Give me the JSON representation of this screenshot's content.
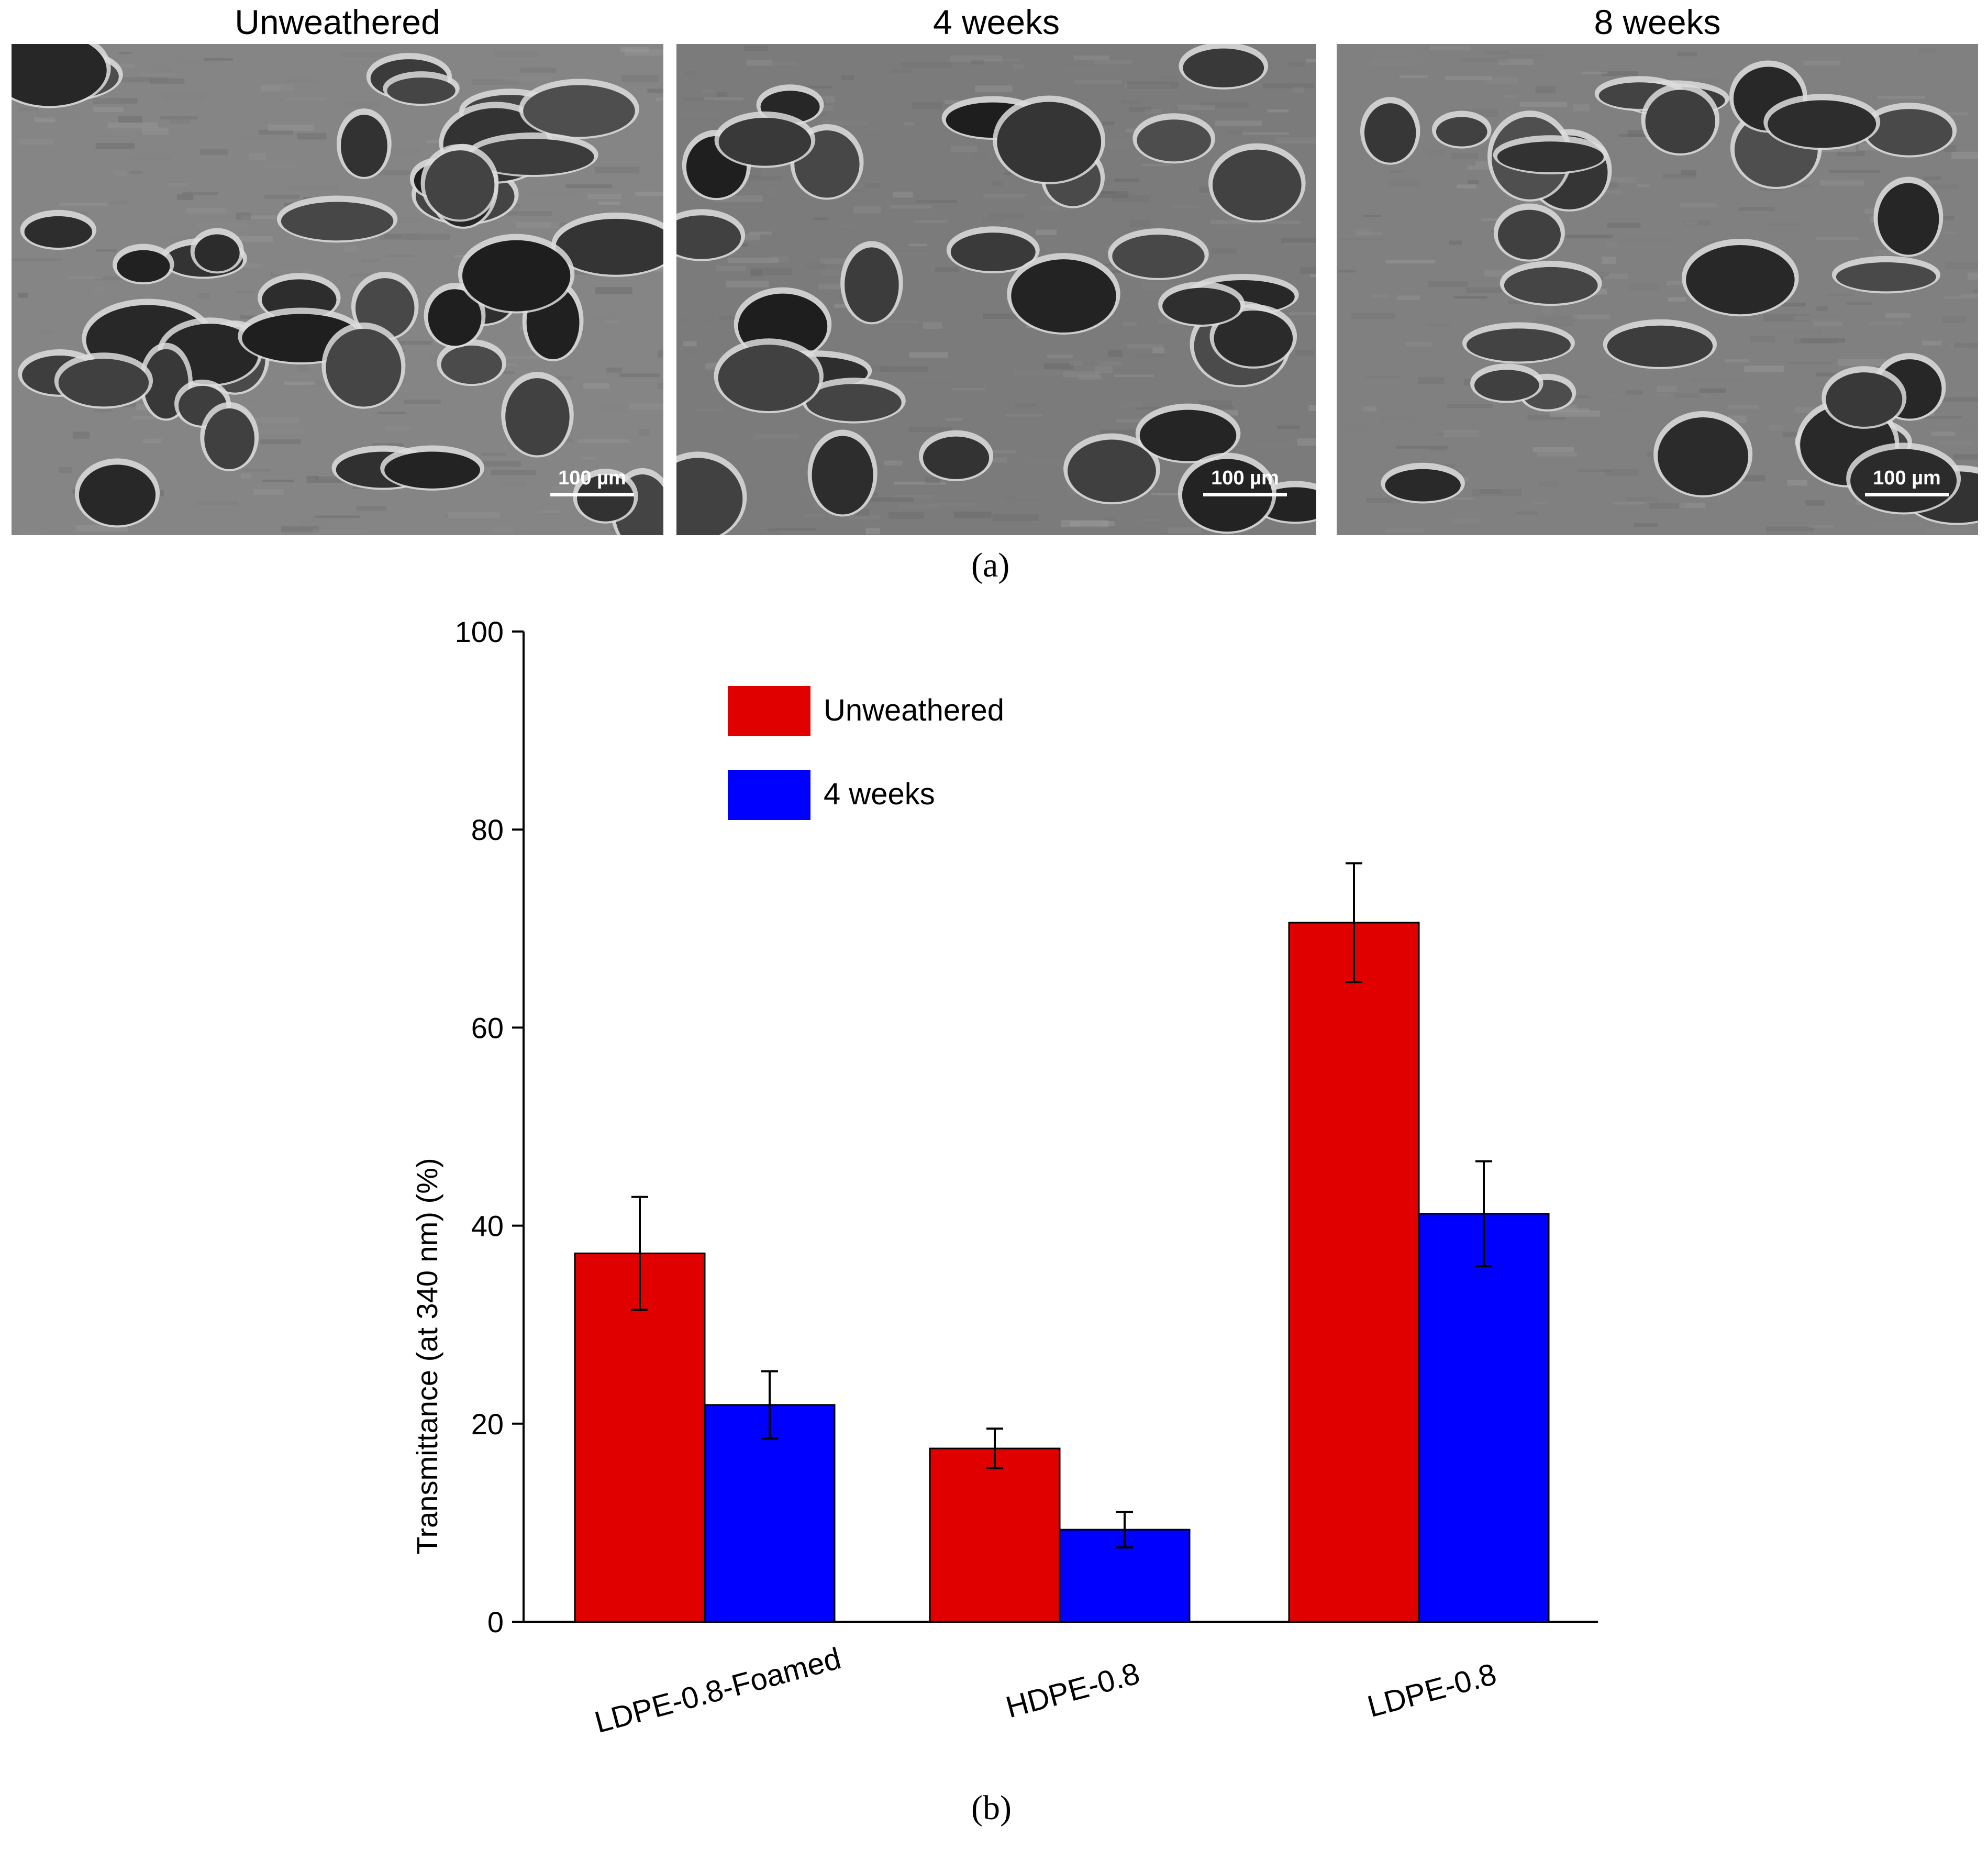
{
  "figure_a": {
    "panels": [
      {
        "title": "Unweathered",
        "scale_label": "100 µm",
        "tone": "#858585"
      },
      {
        "title": "4 weeks",
        "scale_label": "100 µm",
        "tone": "#7b7b7b"
      },
      {
        "title": "8 weeks",
        "scale_label": "100 µm",
        "tone": "#808080"
      }
    ],
    "caption": "(a)"
  },
  "figure_b": {
    "caption": "(b)"
  },
  "chart_data": {
    "type": "bar",
    "categories": [
      "LDPE-0.8-Foamed",
      "HDPE-0.8",
      "LDPE-0.8"
    ],
    "series": [
      {
        "name": "Unweathered",
        "color": "#e00000",
        "values": [
          37.2,
          17.5,
          70.6
        ],
        "errors": [
          5.7,
          2.0,
          6.0
        ]
      },
      {
        "name": "4 weeks",
        "color": "#0000ff",
        "values": [
          21.9,
          9.3,
          41.2
        ],
        "errors": [
          3.4,
          1.8,
          5.3
        ]
      }
    ],
    "ylabel": "Transmittance (at 340 nm) (%)",
    "xlabel": "",
    "ylim": [
      0,
      100
    ],
    "yticks": [
      0,
      20,
      40,
      60,
      80,
      100
    ],
    "grid": false,
    "legend_position": "top-left"
  }
}
